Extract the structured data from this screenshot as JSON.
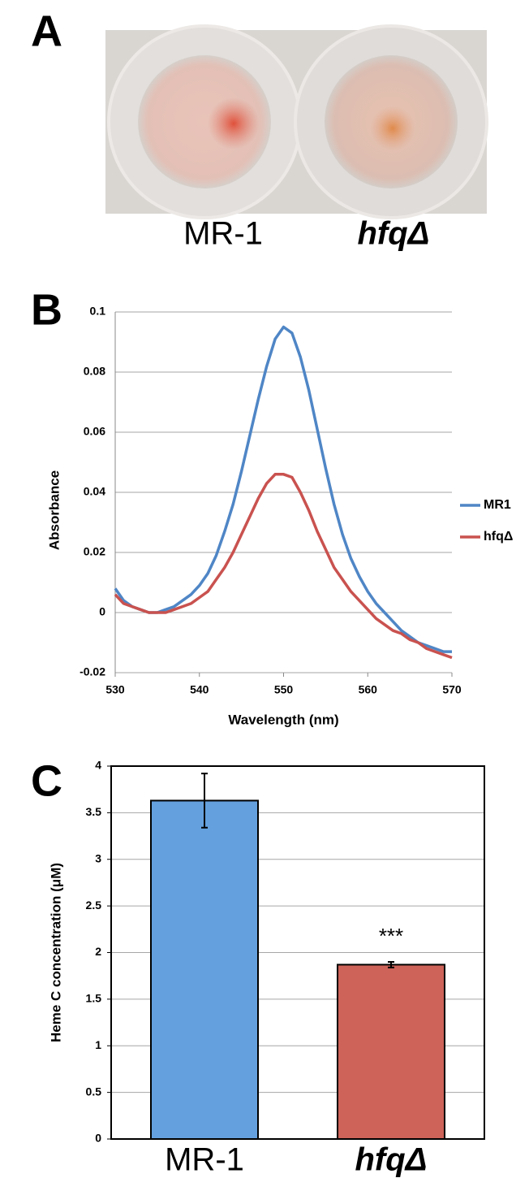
{
  "panel_a": {
    "label": "A",
    "labels": [
      "MR-1",
      "hfqΔ"
    ]
  },
  "chart_data": [
    {
      "type": "line",
      "panel_label": "B",
      "x_label": "Wavelength (nm)",
      "y_label": "Absorbance",
      "x": [
        530,
        531,
        532,
        533,
        534,
        535,
        536,
        537,
        538,
        539,
        540,
        541,
        542,
        543,
        544,
        545,
        546,
        547,
        548,
        549,
        550,
        551,
        552,
        553,
        554,
        555,
        556,
        557,
        558,
        559,
        560,
        561,
        562,
        563,
        564,
        565,
        566,
        567,
        568,
        569,
        570
      ],
      "series": [
        {
          "name": "MR1",
          "color": "#4f86c6",
          "values": [
            0.008,
            0.004,
            0.002,
            0.001,
            0.0,
            0.0,
            0.001,
            0.002,
            0.004,
            0.006,
            0.009,
            0.013,
            0.019,
            0.027,
            0.036,
            0.047,
            0.059,
            0.071,
            0.082,
            0.091,
            0.095,
            0.093,
            0.085,
            0.074,
            0.061,
            0.048,
            0.036,
            0.026,
            0.018,
            0.012,
            0.007,
            0.003,
            0.0,
            -0.003,
            -0.006,
            -0.008,
            -0.01,
            -0.011,
            -0.012,
            -0.013,
            -0.013
          ]
        },
        {
          "name": "hfqΔ",
          "color": "#c9524f",
          "values": [
            0.006,
            0.003,
            0.002,
            0.001,
            0.0,
            0.0,
            0.0,
            0.001,
            0.002,
            0.003,
            0.005,
            0.007,
            0.011,
            0.015,
            0.02,
            0.026,
            0.032,
            0.038,
            0.043,
            0.046,
            0.046,
            0.045,
            0.04,
            0.034,
            0.027,
            0.021,
            0.015,
            0.011,
            0.007,
            0.004,
            0.001,
            -0.002,
            -0.004,
            -0.006,
            -0.007,
            -0.009,
            -0.01,
            -0.012,
            -0.013,
            -0.014,
            -0.015
          ]
        }
      ],
      "xlim": [
        530,
        570
      ],
      "xticks": [
        530,
        540,
        550,
        560,
        570
      ],
      "ylim": [
        -0.02,
        0.1
      ],
      "yticks": [
        -0.02,
        0,
        0.02,
        0.04,
        0.06,
        0.08,
        0.1
      ],
      "grid": true,
      "legend": "right"
    },
    {
      "type": "bar",
      "panel_label": "C",
      "y_label": "Heme C concentration (μM)",
      "categories": [
        "MR-1",
        "hfqΔ"
      ],
      "values": [
        3.63,
        1.87
      ],
      "errors": [
        0.29,
        0.03
      ],
      "colors": [
        "#64a0dd",
        "#cd6359"
      ],
      "annotation": "***",
      "ylim": [
        0,
        4
      ],
      "yticks": [
        0,
        0.5,
        1,
        1.5,
        2,
        2.5,
        3,
        3.5,
        4
      ],
      "grid": true
    }
  ]
}
